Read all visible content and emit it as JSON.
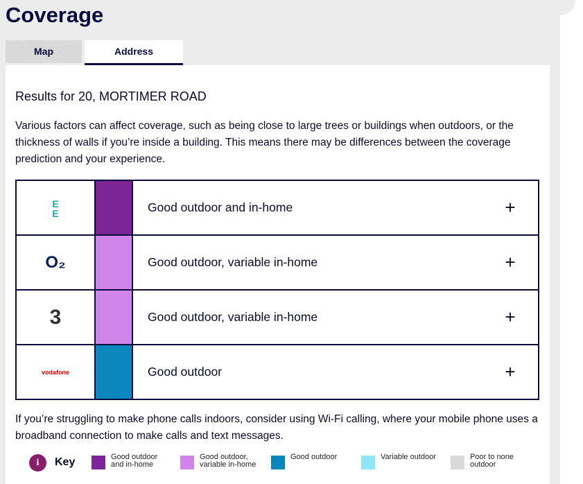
{
  "header": {
    "title": "Coverage"
  },
  "tabs": [
    {
      "label": "Map",
      "active": false
    },
    {
      "label": "Address",
      "active": true
    }
  ],
  "results_heading": "Results for 20, MORTIMER ROAD",
  "intro": "Various factors can affect coverage, such as being close to large trees or buildings when outdoors, or the thickness of walls if you’re inside a building. This means there may be differences between the coverage prediction and your experience.",
  "table": {
    "rows": [
      {
        "logo": "EE",
        "logo_color": "#1fa3a3",
        "color": "#7b2596",
        "status": "Good outdoor and in-home",
        "expand": "+"
      },
      {
        "logo": "O₂",
        "logo_color": "#0a1f5c",
        "color": "#d085ea",
        "status": "Good outdoor, variable in-home",
        "expand": "+"
      },
      {
        "logo": "3",
        "logo_color": "#333333",
        "color": "#d085ea",
        "status": "Good outdoor, variable in-home",
        "expand": "+"
      },
      {
        "logo": "vodafone",
        "logo_color": "#e60000",
        "color": "#0a87bd",
        "status": "Good outdoor",
        "expand": "+"
      }
    ]
  },
  "note": "If you’re struggling to make phone calls indoors, consider using Wi-Fi calling, where your mobile phone uses a broadband connection to make calls and text messages.",
  "key": {
    "icon": "i",
    "title": "Key",
    "items": [
      {
        "label": "Good outdoor and in-home",
        "color": "#7b2596"
      },
      {
        "label": "Good outdoor, variable in-home",
        "color": "#d085ea"
      },
      {
        "label": "Good outdoor",
        "color": "#0a87bd"
      },
      {
        "label": "Variable outdoor",
        "color": "#8ee6f7"
      },
      {
        "label": "Poor to none outdoor",
        "color": "#d9d9d9"
      }
    ]
  }
}
